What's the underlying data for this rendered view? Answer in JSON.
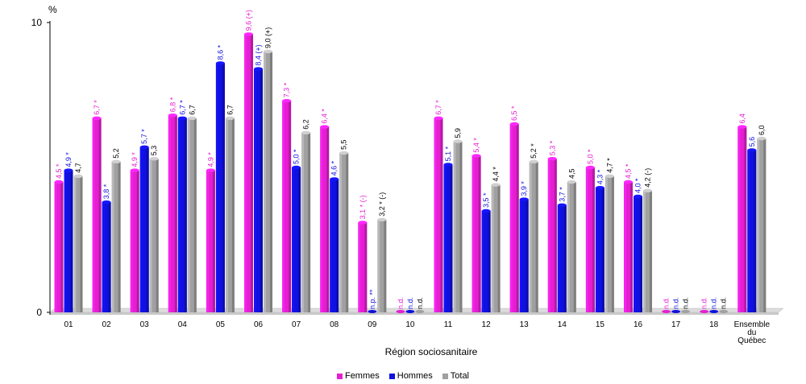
{
  "chart_data": {
    "type": "bar",
    "ylabel": "%",
    "xlabel": "Région sociosanitaire",
    "ylim": [
      0,
      10
    ],
    "yticks": [
      "0",
      "10"
    ],
    "categories": [
      "01",
      "02",
      "03",
      "04",
      "05",
      "06",
      "07",
      "08",
      "09",
      "10",
      "11",
      "12",
      "13",
      "14",
      "15",
      "16",
      "17",
      "18",
      [
        "Ensemble",
        "du",
        "Québec"
      ]
    ],
    "series": [
      {
        "name": "Femmes",
        "color": "#e61ed2",
        "values": [
          4.5,
          6.7,
          4.9,
          6.8,
          4.9,
          9.6,
          7.3,
          6.4,
          3.1,
          0,
          6.7,
          5.4,
          6.5,
          5.3,
          5.0,
          4.5,
          0,
          0,
          6.4
        ],
        "labels": [
          "4,5 *",
          "6,7 *",
          "4,9 *",
          "6,8 *",
          "4,9 *",
          "9,6 (+)",
          "7,3 *",
          "6,4 *",
          "3,1 * (-)",
          "n.d.",
          "6,7 *",
          "5,4 *",
          "6,5 *",
          "5,3 *",
          "5,0 *",
          "4,5 *",
          "n.d.",
          "n.d.",
          "6,4"
        ]
      },
      {
        "name": "Hommes",
        "color": "#1010e0",
        "values": [
          4.9,
          3.8,
          5.7,
          6.7,
          8.6,
          8.4,
          5.0,
          4.6,
          0,
          0,
          5.1,
          3.5,
          3.9,
          3.7,
          4.3,
          4.0,
          0,
          0,
          5.6
        ],
        "labels": [
          "4,9 *",
          "3,8 *",
          "5,7 *",
          "6,7 *",
          "8,6 *",
          "8,4 (+)",
          "5,0 *",
          "4,6 *",
          "n.p. **",
          "n.d.",
          "5,1 *",
          "3,5 *",
          "3,9 *",
          "3,7 *",
          "4,3 *",
          "4,0 *",
          "n.d.",
          "n.d.",
          "5,6"
        ]
      },
      {
        "name": "Total",
        "color": "#a0a0a0",
        "values": [
          4.7,
          5.2,
          5.3,
          6.7,
          6.7,
          9.0,
          6.2,
          5.5,
          3.2,
          0,
          5.9,
          4.4,
          5.2,
          4.5,
          4.7,
          4.2,
          0,
          0,
          6.0
        ],
        "labels": [
          "4,7",
          "5,2",
          "5,3",
          "6,7",
          "6,7",
          "9,0 (+)",
          "6,2",
          "5,5",
          "3,2 * (-)",
          "n.d.",
          "5,9",
          "4,4 *",
          "5,2 *",
          "4,5",
          "4,7 *",
          "4,2 (-)",
          "n.d.",
          "n.d.",
          "6,0"
        ]
      }
    ],
    "legend_position": "bottom-center",
    "grid": false
  }
}
